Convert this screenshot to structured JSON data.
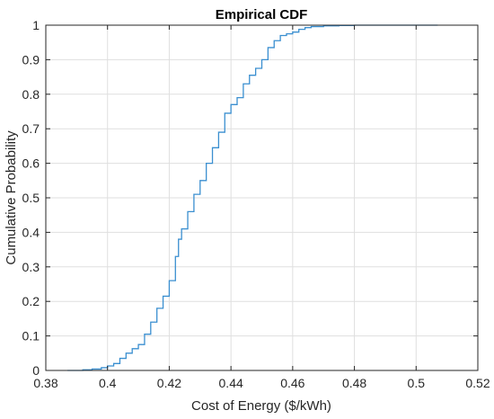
{
  "chart_data": {
    "type": "line",
    "title": "Empirical CDF",
    "xlabel": "Cost of Energy ($/kWh)",
    "ylabel": "Cumulative Probability",
    "xlim": [
      0.38,
      0.52
    ],
    "ylim": [
      0,
      1
    ],
    "xticks": [
      "0.38",
      "0.4",
      "0.42",
      "0.44",
      "0.46",
      "0.48",
      "0.5",
      "0.52"
    ],
    "yticks": [
      "0",
      "0.1",
      "0.2",
      "0.3",
      "0.4",
      "0.5",
      "0.6",
      "0.7",
      "0.8",
      "0.9",
      "1"
    ],
    "grid": true,
    "line_color": "#3a8fd0",
    "series": [
      {
        "x": [
          0.387,
          0.392,
          0.395,
          0.398,
          0.4,
          0.402,
          0.404,
          0.406,
          0.408,
          0.41,
          0.412,
          0.414,
          0.416,
          0.418,
          0.42,
          0.422,
          0.423,
          0.424,
          0.426,
          0.428,
          0.43,
          0.432,
          0.434,
          0.436,
          0.438,
          0.44,
          0.442,
          0.444,
          0.446,
          0.448,
          0.45,
          0.452,
          0.454,
          0.456,
          0.458,
          0.46,
          0.462,
          0.464,
          0.466,
          0.47,
          0.475,
          0.48,
          0.49,
          0.5,
          0.507
        ],
        "y": [
          0.0,
          0.002,
          0.004,
          0.008,
          0.013,
          0.02,
          0.035,
          0.05,
          0.063,
          0.075,
          0.105,
          0.14,
          0.18,
          0.215,
          0.26,
          0.33,
          0.38,
          0.41,
          0.46,
          0.51,
          0.55,
          0.6,
          0.645,
          0.69,
          0.745,
          0.77,
          0.79,
          0.83,
          0.855,
          0.875,
          0.9,
          0.935,
          0.955,
          0.97,
          0.975,
          0.98,
          0.988,
          0.993,
          0.996,
          0.998,
          0.999,
          1.0,
          1.0,
          1.0,
          1.0
        ]
      }
    ]
  }
}
